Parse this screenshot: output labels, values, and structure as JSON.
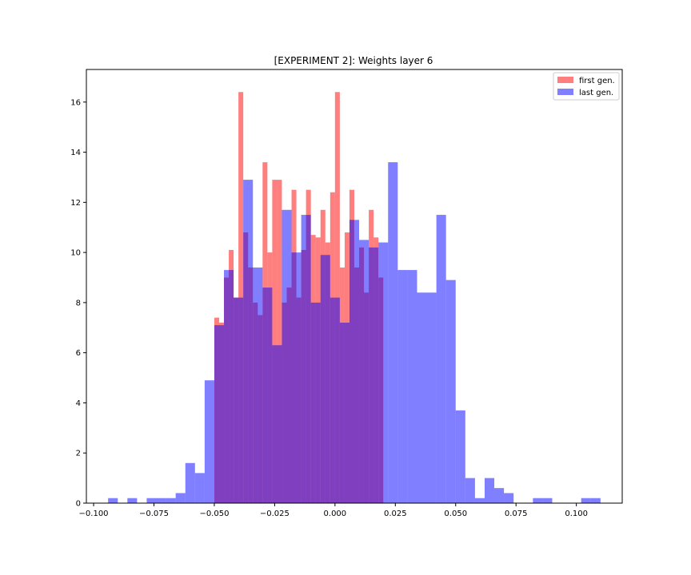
{
  "chart_data": {
    "type": "histogram",
    "title": "[EXPERIMENT 2]: Weights layer 6",
    "xlabel": "",
    "ylabel": "",
    "xlim": [
      -0.103,
      0.119
    ],
    "ylim": [
      0,
      17.3
    ],
    "x_ticks": [
      -0.1,
      -0.075,
      -0.05,
      -0.025,
      0.0,
      0.025,
      0.05,
      0.075,
      0.1
    ],
    "x_tick_labels": [
      "−0.100",
      "−0.075",
      "−0.050",
      "−0.025",
      "0.000",
      "0.025",
      "0.050",
      "0.075",
      "0.100"
    ],
    "y_ticks": [
      0,
      2,
      4,
      6,
      8,
      10,
      12,
      14,
      16
    ],
    "y_tick_labels": [
      "0",
      "2",
      "4",
      "6",
      "8",
      "10",
      "12",
      "14",
      "16"
    ],
    "grid": false,
    "legend_position": "top-right",
    "series": [
      {
        "name": "first gen.",
        "color": "#ff0000",
        "alpha": 0.5,
        "bin_start": -0.05,
        "bin_width": 0.002,
        "values": [
          7.4,
          7.2,
          9.0,
          10.1,
          8.2,
          16.4,
          10.8,
          9.4,
          8.0,
          7.5,
          13.6,
          10.0,
          12.9,
          12.9,
          8.0,
          8.6,
          12.5,
          8.2,
          10.1,
          12.5,
          10.7,
          10.6,
          11.7,
          10.4,
          12.4,
          16.4,
          9.4,
          10.8,
          12.5,
          9.4,
          10.2,
          8.4,
          11.7,
          10.6,
          9.0
        ]
      },
      {
        "name": "last gen.",
        "color": "#0000ff",
        "alpha": 0.5,
        "bin_start": -0.094,
        "bin_width": 0.004,
        "values": [
          0.2,
          0,
          0.2,
          0,
          0.2,
          0.2,
          0.2,
          0.4,
          1.6,
          1.2,
          4.9,
          7.1,
          9.3,
          8.2,
          12.9,
          9.4,
          8.6,
          6.3,
          11.7,
          10.0,
          11.5,
          8.0,
          9.9,
          8.2,
          7.2,
          11.3,
          10.5,
          10.2,
          10.4,
          13.6,
          9.3,
          9.3,
          8.4,
          8.4,
          11.5,
          8.9,
          3.7,
          1.0,
          0.2,
          1.0,
          0.6,
          0.4,
          0,
          0,
          0.2,
          0.2,
          0,
          0,
          0,
          0.2,
          0.2
        ]
      }
    ]
  }
}
